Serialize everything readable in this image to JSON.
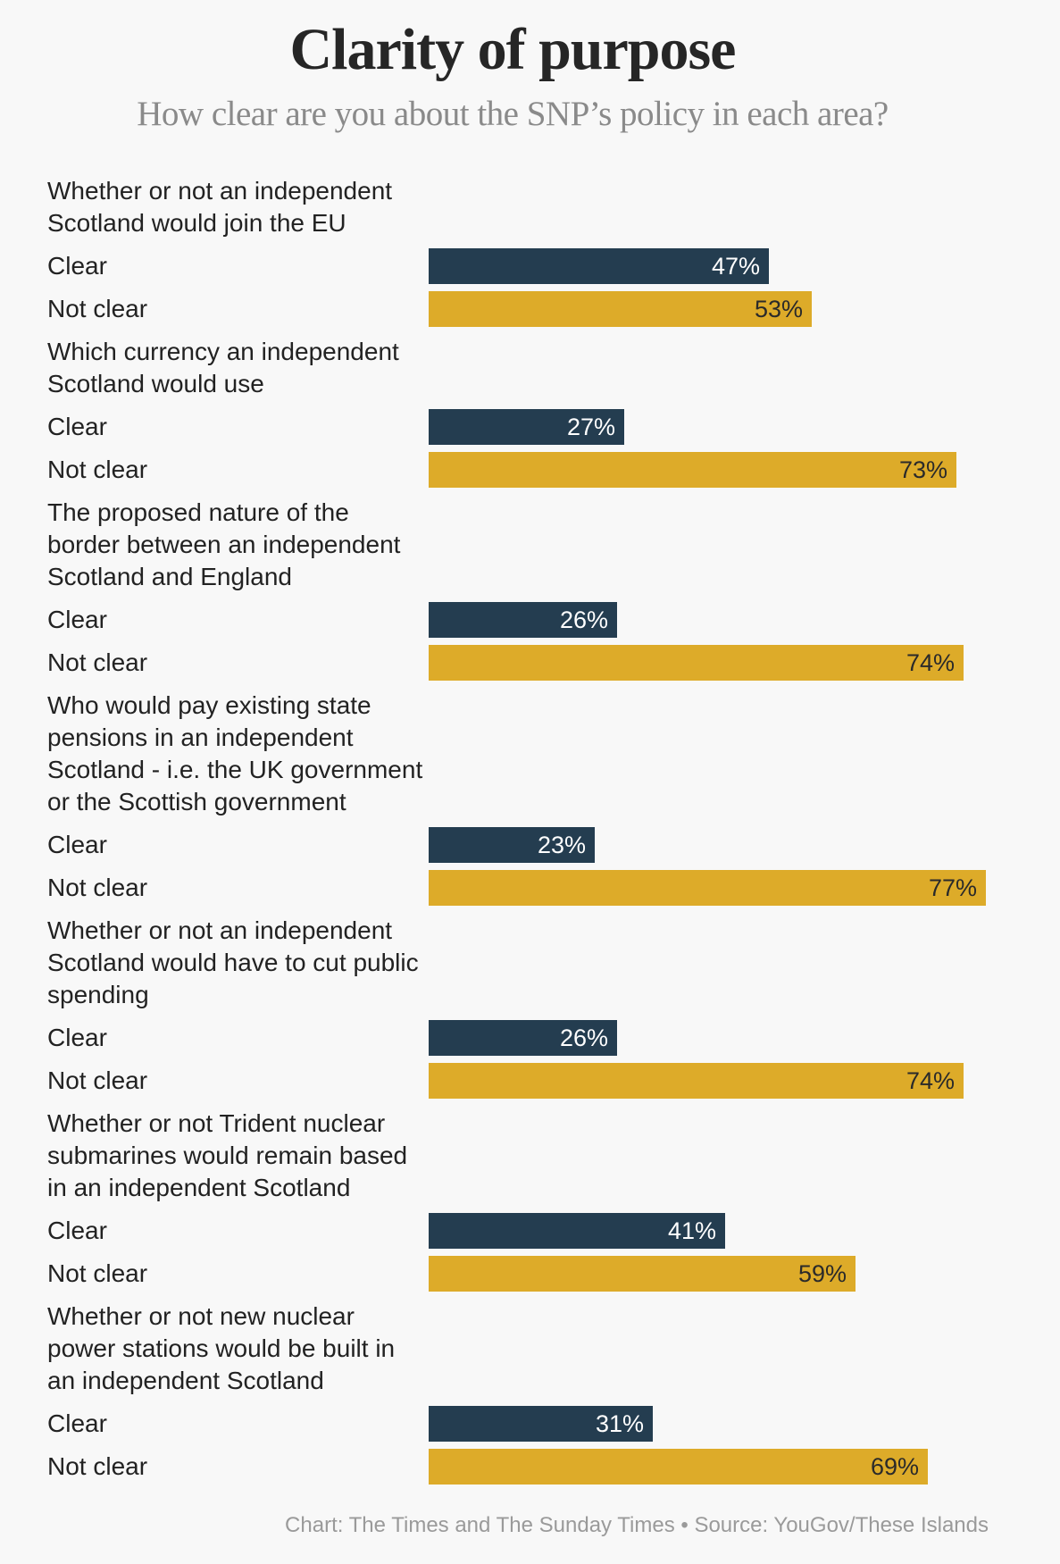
{
  "title": "Clarity of purpose",
  "subtitle": "How clear are you about the SNP’s policy in each area?",
  "footer": "Chart: The Times and The Sunday Times • Source: YouGov/These Islands",
  "colors": {
    "clear": "#243d50",
    "not_clear": "#ddab29",
    "background": "#f8f8f8"
  },
  "chart_data": {
    "type": "bar",
    "orientation": "horizontal",
    "value_suffix": "%",
    "series_labels": [
      "Clear",
      "Not clear"
    ],
    "groups": [
      {
        "question": [
          "Whether or not an independent",
          "Scotland would join the EU"
        ],
        "clear": 47,
        "not_clear": 53
      },
      {
        "question": [
          "Which currency an independent",
          "Scotland would use"
        ],
        "clear": 27,
        "not_clear": 73
      },
      {
        "question": [
          "The proposed nature of the",
          "border between an independent",
          "Scotland and England"
        ],
        "clear": 26,
        "not_clear": 74
      },
      {
        "question": [
          "Who would pay existing state",
          "pensions in an independent",
          "Scotland - i.e. the UK government",
          "or the Scottish government"
        ],
        "clear": 23,
        "not_clear": 77
      },
      {
        "question": [
          "Whether or not an independent",
          "Scotland would have to cut public",
          "spending"
        ],
        "clear": 26,
        "not_clear": 74
      },
      {
        "question": [
          "Whether or not Trident nuclear",
          "submarines would remain based",
          "in an independent Scotland"
        ],
        "clear": 41,
        "not_clear": 59
      },
      {
        "question": [
          "Whether or not new nuclear",
          "power stations would be built in",
          "an independent Scotland"
        ],
        "clear": 31,
        "not_clear": 69
      }
    ]
  }
}
